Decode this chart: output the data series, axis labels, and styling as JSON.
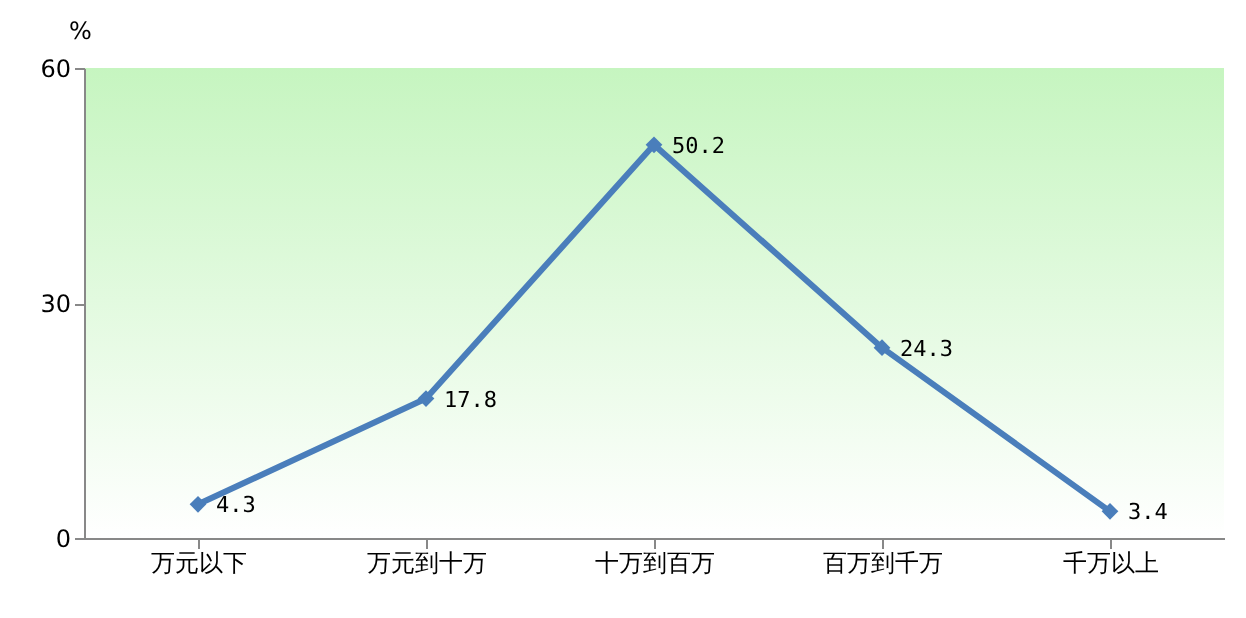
{
  "chart_data": {
    "type": "line",
    "ylabel": "%",
    "categories": [
      "万元以下",
      "万元到十万",
      "十万到百万",
      "百万到千万",
      "千万以上"
    ],
    "series": [
      {
        "color": "#4a7ebb",
        "values": [
          4.3,
          17.8,
          50.2,
          24.3,
          3.4
        ]
      }
    ],
    "ylim": [
      0,
      60
    ],
    "yticks": [
      0,
      30,
      60
    ],
    "grid": false,
    "legend": false,
    "marker": "diamond",
    "line_style": "solid",
    "data_labels": true
  }
}
